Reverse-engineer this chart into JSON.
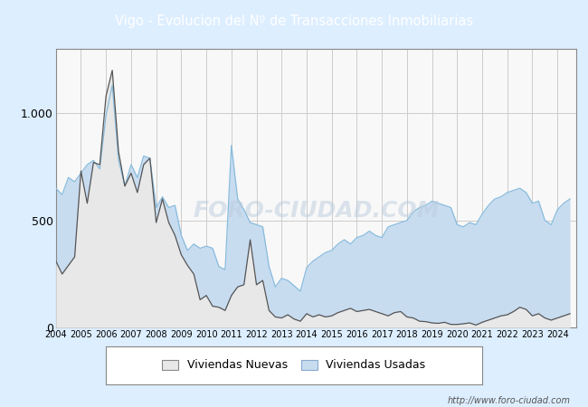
{
  "title": "Vigo - Evolucion del Nº de Transacciones Inmobiliarias",
  "title_bg_color": "#4a86c8",
  "title_text_color": "#ffffff",
  "ylim": [
    0,
    1300
  ],
  "yticks": [
    0,
    500,
    1000
  ],
  "ytick_labels": [
    "0",
    "500",
    "1.000"
  ],
  "outer_bg_color": "#ddeeff",
  "plot_bg_color": "#f8f8f8",
  "grid_color": "#cccccc",
  "watermark": "http://www.foro-ciudad.com",
  "legend_labels": [
    "Viviendas Nuevas",
    "Viviendas Usadas"
  ],
  "color_nuevas_fill": "#e8e8e8",
  "color_usadas_fill": "#c8dcf0",
  "line_color_nuevas": "#555555",
  "line_color_usadas": "#88bbdd",
  "nuevas_quarterly": [
    310,
    250,
    290,
    330,
    730,
    580,
    770,
    760,
    1080,
    1200,
    820,
    660,
    720,
    630,
    760,
    790,
    490,
    600,
    490,
    430,
    340,
    290,
    250,
    130,
    150,
    100,
    95,
    80,
    150,
    190,
    200,
    410,
    200,
    220,
    80,
    50,
    45,
    60,
    40,
    30,
    65,
    50,
    60,
    50,
    55,
    70,
    80,
    90,
    75,
    80,
    85,
    75,
    65,
    55,
    70,
    75,
    50,
    45,
    30,
    28,
    22,
    20,
    25,
    15,
    15,
    18,
    22,
    12,
    25,
    35,
    45,
    55,
    60,
    75,
    95,
    85,
    55,
    65,
    45,
    35,
    45,
    55,
    65
  ],
  "usadas_quarterly": [
    650,
    620,
    700,
    680,
    720,
    760,
    780,
    740,
    990,
    1130,
    780,
    660,
    760,
    700,
    800,
    790,
    560,
    610,
    560,
    570,
    430,
    360,
    390,
    370,
    380,
    370,
    285,
    270,
    850,
    600,
    550,
    490,
    480,
    470,
    285,
    190,
    230,
    220,
    195,
    170,
    280,
    310,
    330,
    350,
    360,
    390,
    410,
    390,
    420,
    430,
    450,
    430,
    420,
    470,
    480,
    490,
    500,
    540,
    560,
    570,
    590,
    580,
    570,
    560,
    480,
    470,
    490,
    480,
    530,
    570,
    600,
    610,
    630,
    640,
    650,
    630,
    580,
    590,
    500,
    480,
    550,
    580,
    600
  ]
}
